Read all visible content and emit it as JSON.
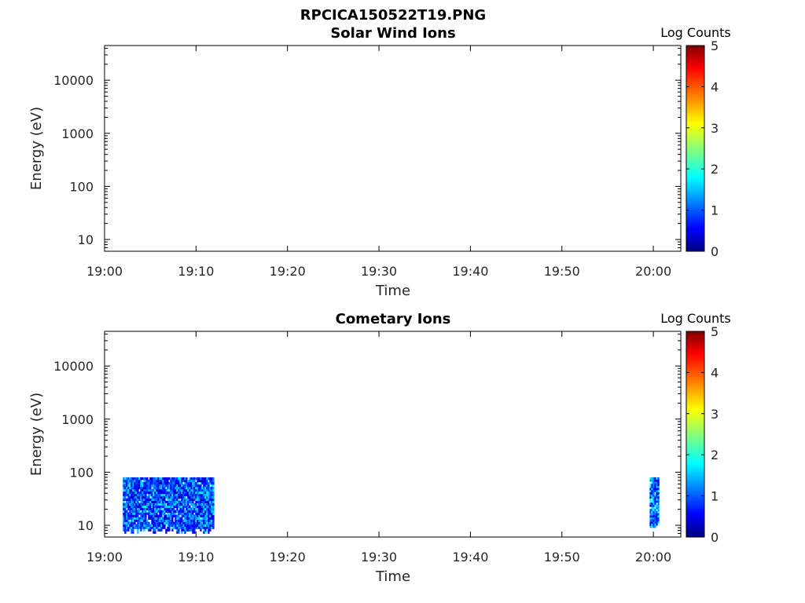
{
  "figure": {
    "title": "RPCICA150522T19.PNG"
  },
  "colorbar": {
    "label": "Log Counts",
    "range": [
      0,
      5
    ],
    "ticks": [
      "0",
      "1",
      "2",
      "3",
      "4",
      "5"
    ],
    "colormap": "jet",
    "colors": [
      "#00007f",
      "#0000ff",
      "#00ffff",
      "#ffff00",
      "#ff0000",
      "#7f0000"
    ]
  },
  "chart_data": [
    {
      "type": "heatmap",
      "title": "Solar Wind Ions",
      "xlabel": "Time",
      "ylabel": "Energy (eV)",
      "x_scale": "time",
      "xlim": [
        "19:00",
        "20:03"
      ],
      "x_ticks": [
        "19:00",
        "19:10",
        "19:20",
        "19:30",
        "19:40",
        "19:50",
        "20:00"
      ],
      "y_scale": "log",
      "ylim": [
        6,
        45000
      ],
      "y_ticks": [
        "10",
        "100",
        "1000",
        "10000"
      ],
      "z_label": "Log Counts",
      "zlim": [
        0,
        5
      ],
      "blocks": []
    },
    {
      "type": "heatmap",
      "title": "Cometary Ions",
      "xlabel": "Time",
      "ylabel": "Energy (eV)",
      "x_scale": "time",
      "xlim": [
        "19:00",
        "20:03"
      ],
      "x_ticks": [
        "19:00",
        "19:10",
        "19:20",
        "19:30",
        "19:40",
        "19:50",
        "20:00"
      ],
      "y_scale": "log",
      "ylim": [
        6,
        45000
      ],
      "y_ticks": [
        "10",
        "100",
        "1000",
        "10000"
      ],
      "z_label": "Log Counts",
      "zlim": [
        0,
        5
      ],
      "blocks": [
        {
          "t_start": "19:02",
          "t_end": "19:11.8",
          "e_min": 7,
          "e_max": 80,
          "log_counts_range": [
            0.3,
            1.8
          ]
        },
        {
          "t_start": "19:59.6",
          "t_end": "20:00.6",
          "e_min": 9,
          "e_max": 80,
          "log_counts_range": [
            0.3,
            2.0
          ]
        }
      ]
    }
  ]
}
